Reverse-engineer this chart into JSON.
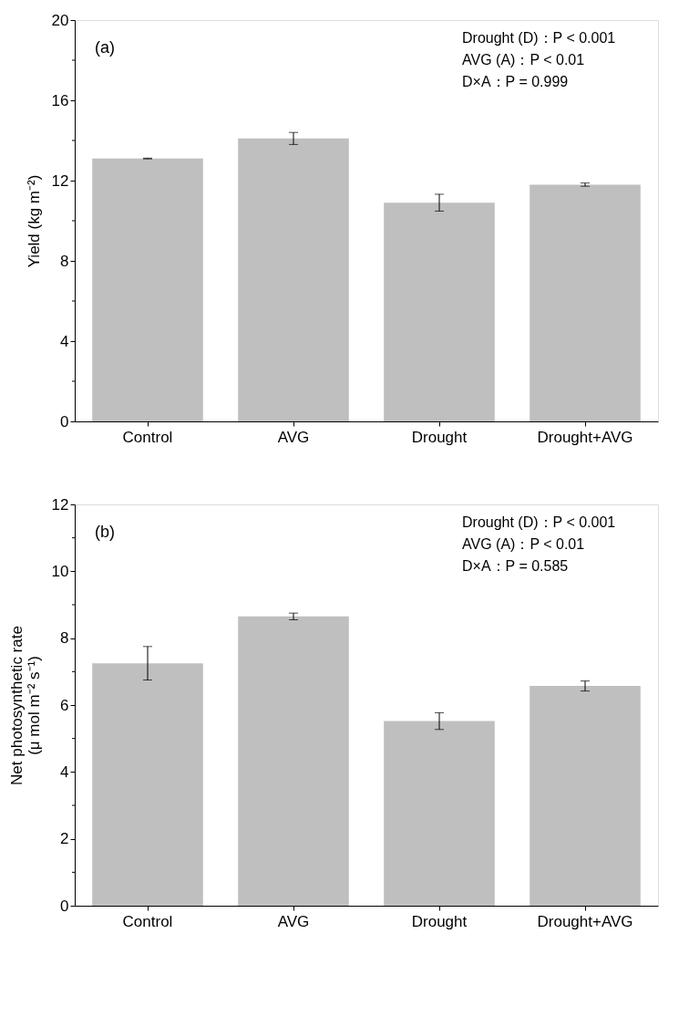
{
  "chart_data": [
    {
      "type": "bar",
      "ylabel": "Yield (kg m⁻²)",
      "categories": [
        "Control",
        "AVG",
        "Drought",
        "Drought+AVG"
      ],
      "series": [
        {
          "color": "#bfbfbf",
          "values": [
            13.1,
            14.1,
            10.9,
            11.8
          ],
          "errors": [
            0.02,
            0.3,
            0.42,
            0.08
          ]
        }
      ],
      "ylim": [
        0,
        20
      ],
      "yticks": [
        0,
        {
          "value": 2,
          "label": null
        },
        4,
        {
          "value": 6,
          "label": null
        },
        8,
        {
          "value": 10,
          "label": null
        },
        12,
        {
          "value": 14,
          "label": null
        },
        16,
        {
          "value": 18,
          "label": null
        },
        20
      ],
      "grid": false,
      "legend": false,
      "annotations": [
        "(a)",
        "Drought (D)：P < 0.001",
        "AVG (A)：P < 0.01",
        "D×A：P = 0.999"
      ]
    },
    {
      "type": "bar",
      "ylabel": "Net photosynthetic rate\n(μ mol m⁻² s⁻¹)",
      "categories": [
        "Control",
        "AVG",
        "Drought",
        "Drought+AVG"
      ],
      "series": [
        {
          "color": "#bfbfbf",
          "values": [
            7.25,
            8.65,
            5.52,
            6.57
          ],
          "errors": [
            0.5,
            0.1,
            0.25,
            0.15
          ]
        }
      ],
      "ylim": [
        0,
        12
      ],
      "yticks": [
        0,
        {
          "value": 1,
          "label": null
        },
        2,
        {
          "value": 3,
          "label": null
        },
        4,
        {
          "value": 5,
          "label": null
        },
        6,
        {
          "value": 7,
          "label": null
        },
        8,
        {
          "value": 9,
          "label": null
        },
        10,
        {
          "value": 11,
          "label": null
        },
        12
      ],
      "grid": false,
      "legend": false,
      "annotations": [
        "(b)",
        "Drought (D)：P < 0.001",
        "AVG (A)：P < 0.01",
        "D×A：P = 0.585"
      ]
    }
  ]
}
